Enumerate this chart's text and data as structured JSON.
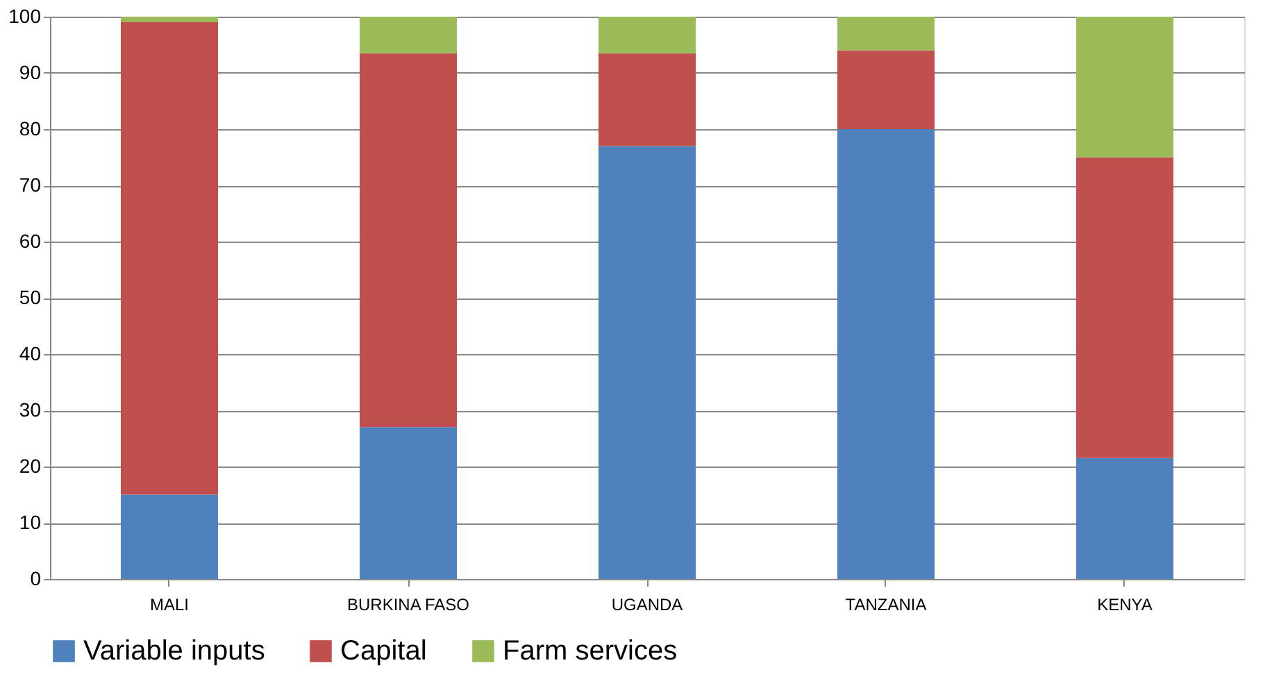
{
  "chart_data": {
    "type": "bar",
    "stacked": true,
    "categories": [
      "MALI",
      "BURKINA FASO",
      "UGANDA",
      "TANZANIA",
      "KENYA"
    ],
    "series": [
      {
        "name": "Variable inputs",
        "color": "#4f81bd",
        "values": [
          15,
          27,
          77,
          80,
          21.5
        ]
      },
      {
        "name": "Capital",
        "color": "#c0504d",
        "values": [
          84,
          66.5,
          16.5,
          14,
          53.5
        ]
      },
      {
        "name": "Farm services",
        "color": "#9bbb59",
        "values": [
          1,
          6.5,
          6.5,
          6,
          25
        ]
      }
    ],
    "ylim": [
      0,
      100
    ],
    "yticks": [
      0,
      10,
      20,
      30,
      40,
      50,
      60,
      70,
      80,
      90,
      100
    ],
    "grid": "y",
    "legend": "bottom"
  }
}
